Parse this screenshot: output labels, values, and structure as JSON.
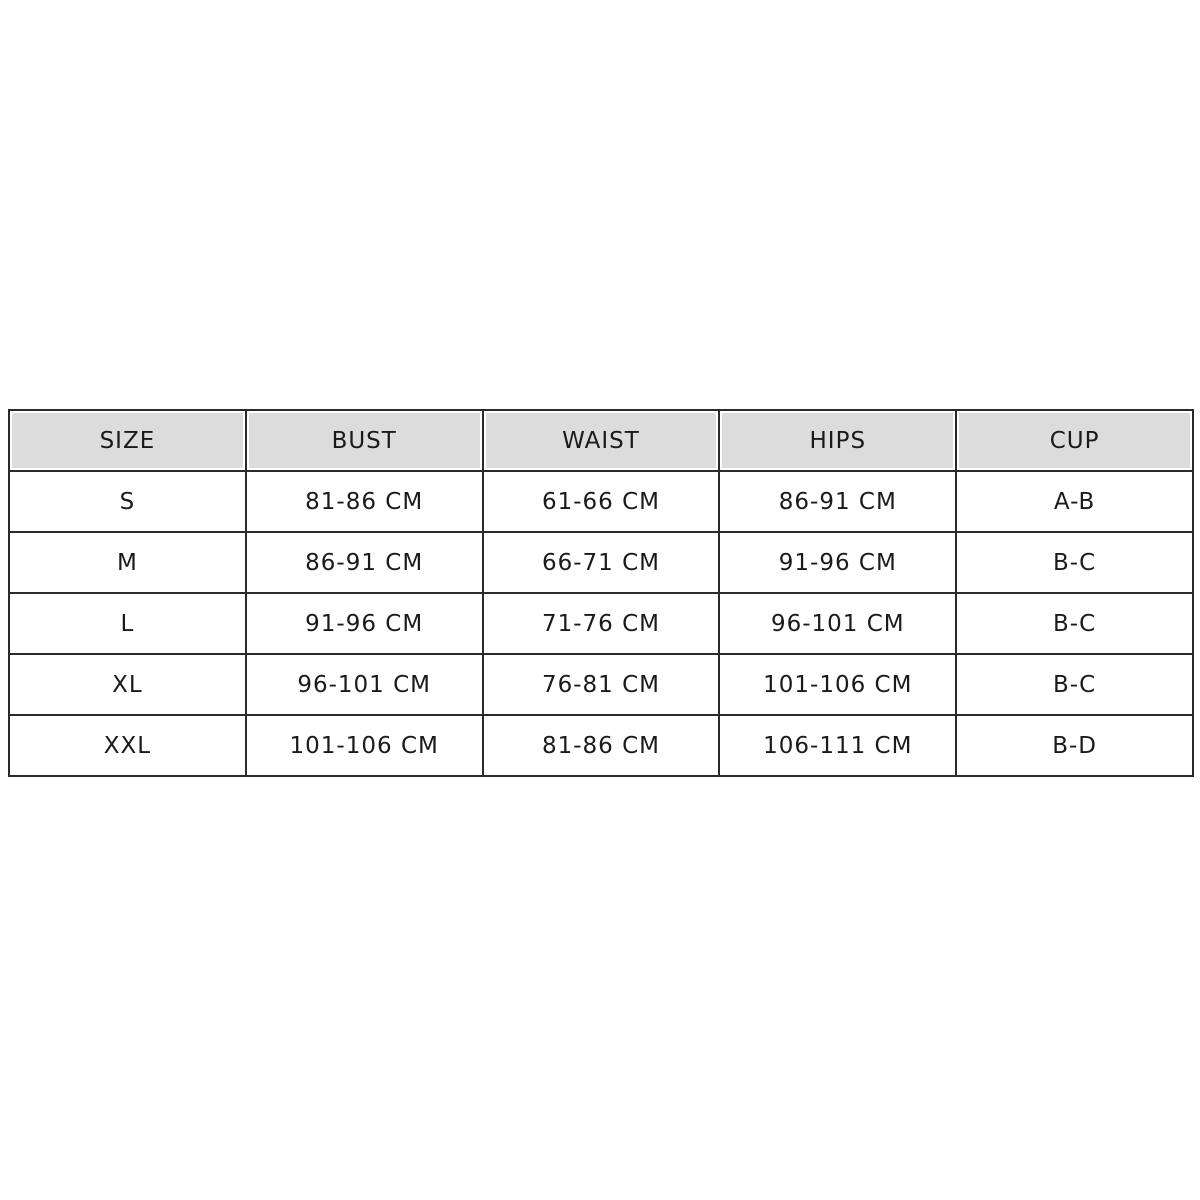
{
  "table": {
    "headers": [
      "SIZE",
      "BUST",
      "WAIST",
      "HIPS",
      "CUP"
    ],
    "rows": [
      [
        "S",
        "81-86 CM",
        "61-66 CM",
        "86-91 CM",
        "A-B"
      ],
      [
        "M",
        "86-91 CM",
        "66-71 CM",
        "91-96 CM",
        "B-C"
      ],
      [
        "L",
        "91-96 CM",
        "71-76 CM",
        "96-101 CM",
        "B-C"
      ],
      [
        "XL",
        "96-101 CM",
        "76-81 CM",
        "101-106 CM",
        "B-C"
      ],
      [
        "XXL",
        "101-106 CM",
        "81-86 CM",
        "106-111 CM",
        "B-D"
      ]
    ]
  },
  "colors": {
    "header_bg": "#dcdcdc",
    "border": "#2a2a2a"
  }
}
